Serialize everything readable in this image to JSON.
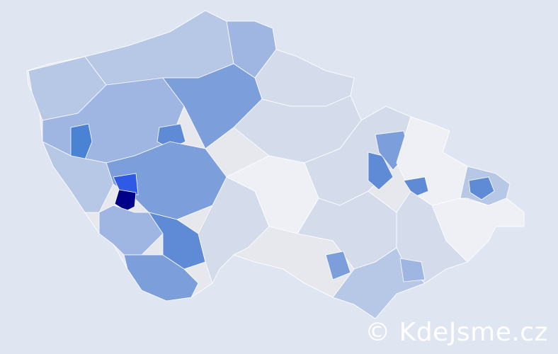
{
  "map": {
    "palette": {
      "0": "#e6e8ee",
      "1": "#eef0f6",
      "2": "#d4dcec",
      "3": "#b7c7e6",
      "4": "#9fb5e2",
      "5": "#7c9fdc",
      "6": "#5f8ad6",
      "7": "#4a82d4",
      "8": "#2f5ae6",
      "9": "#000088"
    },
    "border_color": "#ffffff",
    "background": "#dfe6f2"
  },
  "watermark": "© KdeJsme.cz"
}
